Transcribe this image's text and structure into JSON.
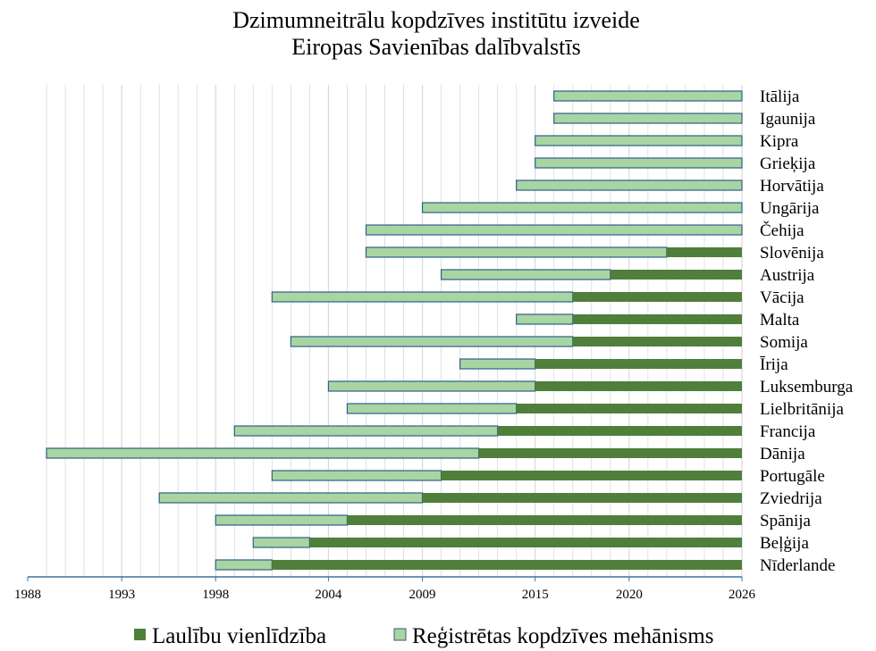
{
  "chart_data": {
    "type": "bar",
    "orientation": "horizontal",
    "stacked": true,
    "title": [
      "Dzimumneitrālu kopdzīves institūtu izveide",
      "Eiropas Savienības dalībvalstīs"
    ],
    "xlim": [
      1988,
      2026
    ],
    "x_ticks": [
      "1988",
      "1993",
      "1998",
      "2004",
      "2009",
      "2015",
      "2020",
      "2026"
    ],
    "grid": true,
    "legend_position": "bottom",
    "colors": {
      "marriage": "#4f7f3a",
      "partnership": "#a8d5a2",
      "edge": "#2e5f8a",
      "grid": "#d9d9d9",
      "axis": "#41719c"
    },
    "series": [
      {
        "key": "marriage",
        "name": "Laulību vienlīdzība"
      },
      {
        "key": "partnership",
        "name": "Reģistrētas kopdzīves mehānisms"
      }
    ],
    "rows": [
      {
        "country": "Itālija",
        "partnership_from": 2016,
        "marriage_from": null
      },
      {
        "country": "Igaunija",
        "partnership_from": 2016,
        "marriage_from": null
      },
      {
        "country": "Kipra",
        "partnership_from": 2015,
        "marriage_from": null
      },
      {
        "country": "Grieķija",
        "partnership_from": 2015,
        "marriage_from": null
      },
      {
        "country": "Horvātija",
        "partnership_from": 2014,
        "marriage_from": null
      },
      {
        "country": "Ungārija",
        "partnership_from": 2009,
        "marriage_from": null
      },
      {
        "country": "Čehija",
        "partnership_from": 2006,
        "marriage_from": null
      },
      {
        "country": "Slovēnija",
        "partnership_from": 2006,
        "marriage_from": 2022
      },
      {
        "country": "Austrija",
        "partnership_from": 2010,
        "marriage_from": 2019
      },
      {
        "country": "Vācija",
        "partnership_from": 2001,
        "marriage_from": 2017
      },
      {
        "country": "Malta",
        "partnership_from": 2014,
        "marriage_from": 2017
      },
      {
        "country": "Somija",
        "partnership_from": 2002,
        "marriage_from": 2017
      },
      {
        "country": "Īrija",
        "partnership_from": 2011,
        "marriage_from": 2015
      },
      {
        "country": "Luksemburga",
        "partnership_from": 2004,
        "marriage_from": 2015
      },
      {
        "country": "Lielbritānija",
        "partnership_from": 2005,
        "marriage_from": 2014
      },
      {
        "country": "Francija",
        "partnership_from": 1999,
        "marriage_from": 2013
      },
      {
        "country": "Dānija",
        "partnership_from": 1989,
        "marriage_from": 2012
      },
      {
        "country": "Portugāle",
        "partnership_from": 2001,
        "marriage_from": 2010
      },
      {
        "country": "Zviedrija",
        "partnership_from": 1995,
        "marriage_from": 2009
      },
      {
        "country": "Spānija",
        "partnership_from": 1998,
        "marriage_from": 2005
      },
      {
        "country": "Beļģija",
        "partnership_from": 2000,
        "marriage_from": 2003
      },
      {
        "country": "Nīderlande",
        "partnership_from": 1998,
        "marriage_from": 2001
      }
    ]
  }
}
